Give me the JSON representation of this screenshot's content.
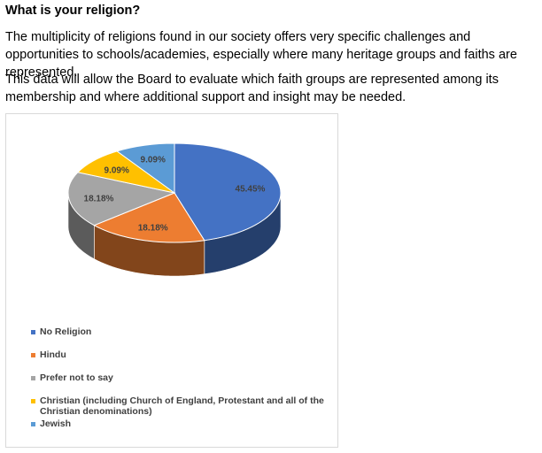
{
  "heading": "What is your religion?",
  "paragraphs": [
    "The multiplicity of religions found in our society offers very specific challenges and opportunities to schools/academies, especially where many heritage groups and faiths are represented.",
    "This data will allow the Board to evaluate which faith groups are represented among its membership and where additional support and insight may be needed."
  ],
  "chart_data": {
    "type": "pie",
    "title": "",
    "categories": [
      "No Religion",
      "Hindu",
      "Prefer not to say",
      "Christian (including Church of England, Protestant and all of the Christian denominations)",
      "Jewish"
    ],
    "values": [
      45.45,
      18.18,
      18.18,
      9.09,
      9.09
    ],
    "labels": [
      "45.45%",
      "18.18%",
      "18.18%",
      "9.09%",
      "9.09%"
    ],
    "colors": [
      "#4472C4",
      "#ED7D31",
      "#A5A5A5",
      "#FFC000",
      "#5B9BD5"
    ],
    "legend_position": "bottom-left",
    "style": "3d"
  }
}
